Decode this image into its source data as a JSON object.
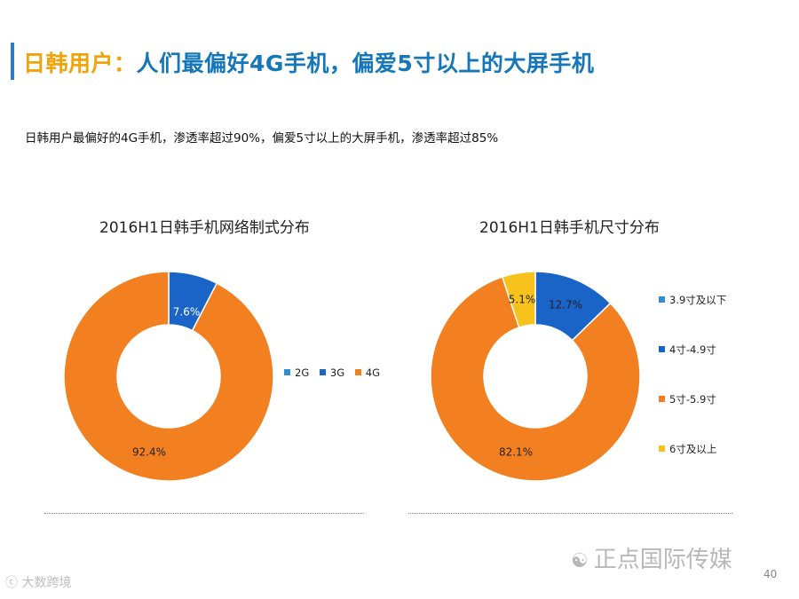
{
  "header": {
    "title_prefix": "日韩用户：",
    "title_main": "人们最偏好4G手机，偏爱5寸以上的大屏手机",
    "subtitle": "日韩用户最偏好的4G手机，渗透率超过90%，偏爱5寸以上的大屏手机，渗透率超过85%"
  },
  "colors": {
    "title_accent": "#f0a30a",
    "title_main": "#1677b8",
    "light_blue": "#2f8fd1",
    "blue": "#1a63c7",
    "orange": "#f28021",
    "yellow": "#f7c21b"
  },
  "chart_data": [
    {
      "type": "pie",
      "title": "2016H1日韩手机网络制式分布",
      "categories": [
        "2G",
        "3G",
        "4G"
      ],
      "values": [
        0,
        7.6,
        92.4
      ],
      "data_labels": [
        "",
        "7.6%",
        "92.4%"
      ],
      "colors": [
        "#2f8fd1",
        "#1a63c7",
        "#f28021"
      ],
      "legend": "right",
      "donut": true
    },
    {
      "type": "pie",
      "title": "2016H1日韩手机尺寸分布",
      "categories": [
        "3.9寸及以下",
        "4寸-4.9寸",
        "5寸-5.9寸",
        "6寸及以上"
      ],
      "values": [
        0,
        12.7,
        82.1,
        5.1
      ],
      "data_labels": [
        "",
        "12.7%",
        "82.1%",
        "5.1%"
      ],
      "colors": [
        "#2f8fd1",
        "#1a63c7",
        "#f28021",
        "#f7c21b"
      ],
      "legend": "right",
      "donut": true
    }
  ],
  "footer": {
    "watermark": "正点国际传媒",
    "page_number": "40",
    "logo_text": "大数跨境"
  }
}
